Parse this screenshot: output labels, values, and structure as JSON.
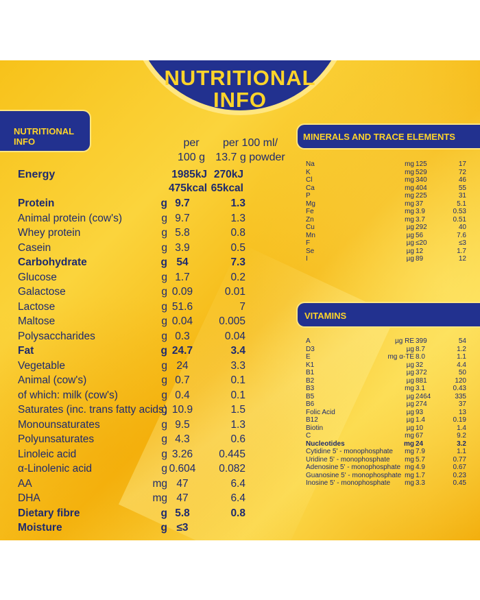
{
  "title_line1": "NUTRITIONAL",
  "title_line2": "INFO",
  "main_tab": {
    "line1": "NUTRITIONAL",
    "line2": "INFO"
  },
  "col1_header": {
    "line1": "per",
    "line2": "100 g"
  },
  "col2_header": {
    "line1": "per 100 ml/",
    "line2": "13.7 g powder"
  },
  "energy": {
    "label": "Energy",
    "kj1": "1985kJ",
    "kcal1": "475kcal",
    "kj2": "270kJ",
    "kcal2": "65kcal"
  },
  "nutrients": [
    {
      "name": "Protein",
      "unit": "g",
      "v1": "9.7",
      "v2": "1.3",
      "bold": true
    },
    {
      "name": "Animal protein (cow's)",
      "unit": "g",
      "v1": "9.7",
      "v2": "1.3"
    },
    {
      "name": "Whey protein",
      "unit": "g",
      "v1": "5.8",
      "v2": "0.8"
    },
    {
      "name": "Casein",
      "unit": "g",
      "v1": "3.9",
      "v2": "0.5"
    },
    {
      "name": "Carbohydrate",
      "unit": "g",
      "v1": "54",
      "v2": "7.3",
      "bold": true
    },
    {
      "name": "Glucose",
      "unit": "g",
      "v1": "1.7",
      "v2": "0.2"
    },
    {
      "name": "Galactose",
      "unit": "g",
      "v1": "0.09",
      "v2": "0.01"
    },
    {
      "name": "Lactose",
      "unit": "g",
      "v1": "51.6",
      "v2": "7"
    },
    {
      "name": "Maltose",
      "unit": "g",
      "v1": "0.04",
      "v2": "0.005"
    },
    {
      "name": "Polysaccharides",
      "unit": "g",
      "v1": "0.3",
      "v2": "0.04"
    },
    {
      "name": "Fat",
      "unit": "g",
      "v1": "24.7",
      "v2": "3.4",
      "bold": true
    },
    {
      "name": "Vegetable",
      "unit": "g",
      "v1": "24",
      "v2": "3.3"
    },
    {
      "name": "Animal (cow's)",
      "unit": "g",
      "v1": "0.7",
      "v2": "0.1"
    },
    {
      "name": "of which: milk (cow's)",
      "unit": "g",
      "v1": "0.4",
      "v2": "0.1"
    },
    {
      "name": "Saturates (inc. trans fatty acids)",
      "unit": "g",
      "v1": "10.9",
      "v2": "1.5"
    },
    {
      "name": "Monounsaturates",
      "unit": "g",
      "v1": "9.5",
      "v2": "1.3"
    },
    {
      "name": "Polyunsaturates",
      "unit": "g",
      "v1": "4.3",
      "v2": "0.6"
    },
    {
      "name": "Linoleic acid",
      "unit": "g",
      "v1": "3.26",
      "v2": "0.445"
    },
    {
      "name": "α-Linolenic acid",
      "unit": "g",
      "v1": "0.604",
      "v2": "0.082"
    },
    {
      "name": "AA",
      "unit": "mg",
      "v1": "47",
      "v2": "6.4"
    },
    {
      "name": "DHA",
      "unit": "mg",
      "v1": "47",
      "v2": "6.4"
    },
    {
      "name": "Dietary fibre",
      "unit": "g",
      "v1": "5.8",
      "v2": "0.8",
      "bold": true
    },
    {
      "name": "Moisture",
      "unit": "g",
      "v1": "≤3",
      "v2": "",
      "bold": true
    }
  ],
  "minerals_title": "MINERALS AND TRACE ELEMENTS",
  "minerals": [
    {
      "name": "Na",
      "unit": "mg",
      "v1": "125",
      "v2": "17"
    },
    {
      "name": "K",
      "unit": "mg",
      "v1": "529",
      "v2": "72"
    },
    {
      "name": "Cl",
      "unit": "mg",
      "v1": "340",
      "v2": "46"
    },
    {
      "name": "Ca",
      "unit": "mg",
      "v1": "404",
      "v2": "55"
    },
    {
      "name": "P",
      "unit": "mg",
      "v1": "225",
      "v2": "31"
    },
    {
      "name": "Mg",
      "unit": "mg",
      "v1": "37",
      "v2": "5.1"
    },
    {
      "name": "Fe",
      "unit": "mg",
      "v1": "3.9",
      "v2": "0.53"
    },
    {
      "name": "Zn",
      "unit": "mg",
      "v1": "3.7",
      "v2": "0.51"
    },
    {
      "name": "Cu",
      "unit": "µg",
      "v1": "292",
      "v2": "40"
    },
    {
      "name": "Mn",
      "unit": "µg",
      "v1": "56",
      "v2": "7.6"
    },
    {
      "name": "F",
      "unit": "µg",
      "v1": "≤20",
      "v2": "≤3"
    },
    {
      "name": "Se",
      "unit": "µg",
      "v1": "12",
      "v2": "1.7"
    },
    {
      "name": "I",
      "unit": "µg",
      "v1": "89",
      "v2": "12"
    }
  ],
  "vitamins_title": "VITAMINS",
  "vitamins": [
    {
      "name": "A",
      "unit": "µg RE",
      "v1": "399",
      "v2": "54"
    },
    {
      "name": "D3",
      "unit": "µg",
      "v1": "8.7",
      "v2": "1.2"
    },
    {
      "name": "E",
      "unit": "mg α-TE",
      "v1": "8.0",
      "v2": "1.1"
    },
    {
      "name": "K1",
      "unit": "µg",
      "v1": "32",
      "v2": "4.4"
    },
    {
      "name": "B1",
      "unit": "µg",
      "v1": "372",
      "v2": "50"
    },
    {
      "name": "B2",
      "unit": "µg",
      "v1": "881",
      "v2": "120"
    },
    {
      "name": "B3",
      "unit": "mg",
      "v1": "3.1",
      "v2": "0.43"
    },
    {
      "name": "B5",
      "unit": "µg",
      "v1": "2464",
      "v2": "335"
    },
    {
      "name": "B6",
      "unit": "µg",
      "v1": "274",
      "v2": "37"
    },
    {
      "name": "Folic Acid",
      "unit": "µg",
      "v1": "93",
      "v2": "13"
    },
    {
      "name": "B12",
      "unit": "µg",
      "v1": "1.4",
      "v2": "0.19"
    },
    {
      "name": "Biotin",
      "unit": "µg",
      "v1": "10",
      "v2": "1.4"
    },
    {
      "name": "C",
      "unit": "mg",
      "v1": "67",
      "v2": "9.2"
    },
    {
      "name": "Nucleotides",
      "unit": "mg",
      "v1": "24",
      "v2": "3.2",
      "bold": true
    },
    {
      "name": "Cytidine 5' - monophosphate",
      "unit": "mg",
      "v1": "7.9",
      "v2": "1.1"
    },
    {
      "name": "Uridine 5' - monophosphate",
      "unit": "mg",
      "v1": "5.7",
      "v2": "0.77"
    },
    {
      "name": "Adenosine 5' - monophosphate",
      "unit": "mg",
      "v1": "4.9",
      "v2": "0.67"
    },
    {
      "name": "Guanosine 5' - monophosphate",
      "unit": "mg",
      "v1": "1.7",
      "v2": "0.23"
    },
    {
      "name": "Inosine 5' - monophosphate",
      "unit": "mg",
      "v1": "3.3",
      "v2": "0.45"
    }
  ]
}
